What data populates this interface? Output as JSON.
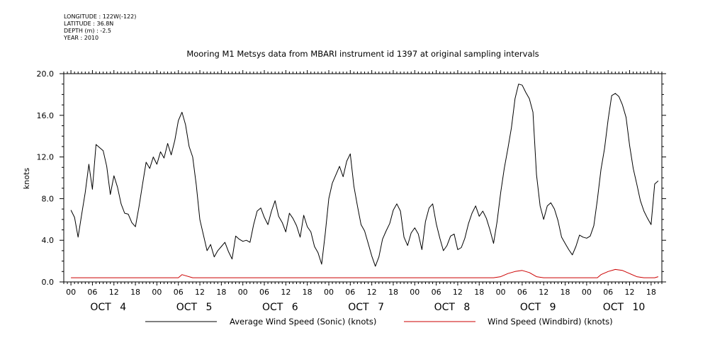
{
  "header": {
    "longitude": "LONGITUDE : 122W(-122)",
    "latitude": "LATITUDE : 36.8N",
    "depth": "DEPTH (m) : -2.5",
    "year": "YEAR : 2010"
  },
  "chart_data": {
    "type": "line",
    "title": "Mooring M1 Metsys data from MBARI instrument id 1397 at original sampling intervals",
    "ylabel": "knots",
    "xlabel": "",
    "ylim": [
      0,
      20
    ],
    "yticks": [
      "0.0",
      "4.0",
      "8.0",
      "12.0",
      "16.0",
      "20.0"
    ],
    "x_start_hour": -2,
    "x_end_hour": 165,
    "hour_tick_labels": [
      "00",
      "06",
      "12",
      "18",
      "00",
      "06",
      "12",
      "18",
      "00",
      "06",
      "12",
      "18",
      "00",
      "06",
      "12",
      "18",
      "00",
      "06",
      "12",
      "18",
      "00",
      "06",
      "12",
      "18",
      "00",
      "06",
      "12",
      "18"
    ],
    "day_labels": [
      "OCT 4",
      "OCT 5",
      "OCT 6",
      "OCT 7",
      "OCT 8",
      "OCT 9",
      "OCT 10"
    ],
    "grid": false,
    "legend_position": "bottom",
    "series": [
      {
        "name": "Average Wind Speed (Sonic) (knots)",
        "color": "#000000",
        "points": [
          [
            0,
            6.9
          ],
          [
            1,
            6.2
          ],
          [
            2,
            4.3
          ],
          [
            3,
            6.5
          ],
          [
            4,
            8.6
          ],
          [
            5,
            11.3
          ],
          [
            6,
            8.9
          ],
          [
            7,
            13.2
          ],
          [
            8,
            12.9
          ],
          [
            9,
            12.6
          ],
          [
            10,
            11.1
          ],
          [
            11,
            8.4
          ],
          [
            12,
            10.2
          ],
          [
            13,
            9.1
          ],
          [
            14,
            7.5
          ],
          [
            15,
            6.6
          ],
          [
            16,
            6.5
          ],
          [
            17,
            5.7
          ],
          [
            18,
            5.3
          ],
          [
            19,
            7.2
          ],
          [
            20,
            9.4
          ],
          [
            21,
            11.5
          ],
          [
            22,
            10.9
          ],
          [
            23,
            12.0
          ],
          [
            24,
            11.3
          ],
          [
            25,
            12.5
          ],
          [
            26,
            11.9
          ],
          [
            27,
            13.3
          ],
          [
            28,
            12.2
          ],
          [
            29,
            13.6
          ],
          [
            30,
            15.5
          ],
          [
            31,
            16.3
          ],
          [
            32,
            15.1
          ],
          [
            33,
            13.0
          ],
          [
            34,
            12.0
          ],
          [
            35,
            9.3
          ],
          [
            36,
            6.0
          ],
          [
            37,
            4.5
          ],
          [
            38,
            3.0
          ],
          [
            39,
            3.6
          ],
          [
            40,
            2.4
          ],
          [
            41,
            3.0
          ],
          [
            42,
            3.4
          ],
          [
            43,
            3.8
          ],
          [
            44,
            2.9
          ],
          [
            45,
            2.2
          ],
          [
            46,
            4.4
          ],
          [
            47,
            4.1
          ],
          [
            48,
            3.9
          ],
          [
            49,
            4.0
          ],
          [
            50,
            3.8
          ],
          [
            51,
            5.5
          ],
          [
            52,
            6.8
          ],
          [
            53,
            7.1
          ],
          [
            54,
            6.2
          ],
          [
            55,
            5.5
          ],
          [
            56,
            6.8
          ],
          [
            57,
            7.8
          ],
          [
            58,
            6.3
          ],
          [
            59,
            5.7
          ],
          [
            60,
            4.8
          ],
          [
            61,
            6.6
          ],
          [
            62,
            6.1
          ],
          [
            63,
            5.4
          ],
          [
            64,
            4.3
          ],
          [
            65,
            6.4
          ],
          [
            66,
            5.3
          ],
          [
            67,
            4.8
          ],
          [
            68,
            3.4
          ],
          [
            69,
            2.8
          ],
          [
            70,
            1.7
          ],
          [
            71,
            4.6
          ],
          [
            72,
            8.0
          ],
          [
            73,
            9.5
          ],
          [
            74,
            10.3
          ],
          [
            75,
            11.1
          ],
          [
            76,
            10.1
          ],
          [
            77,
            11.6
          ],
          [
            78,
            12.3
          ],
          [
            79,
            9.2
          ],
          [
            80,
            7.3
          ],
          [
            81,
            5.5
          ],
          [
            82,
            4.9
          ],
          [
            83,
            3.7
          ],
          [
            84,
            2.5
          ],
          [
            85,
            1.5
          ],
          [
            86,
            2.4
          ],
          [
            87,
            4.1
          ],
          [
            88,
            4.9
          ],
          [
            89,
            5.6
          ],
          [
            90,
            6.9
          ],
          [
            91,
            7.5
          ],
          [
            92,
            6.8
          ],
          [
            93,
            4.3
          ],
          [
            94,
            3.5
          ],
          [
            95,
            4.7
          ],
          [
            96,
            5.2
          ],
          [
            97,
            4.6
          ],
          [
            98,
            3.1
          ],
          [
            99,
            5.8
          ],
          [
            100,
            7.1
          ],
          [
            101,
            7.5
          ],
          [
            102,
            5.6
          ],
          [
            103,
            4.2
          ],
          [
            104,
            3.0
          ],
          [
            105,
            3.5
          ],
          [
            106,
            4.4
          ],
          [
            107,
            4.6
          ],
          [
            108,
            3.1
          ],
          [
            109,
            3.3
          ],
          [
            110,
            4.2
          ],
          [
            111,
            5.6
          ],
          [
            112,
            6.6
          ],
          [
            113,
            7.3
          ],
          [
            114,
            6.3
          ],
          [
            115,
            6.8
          ],
          [
            116,
            6.1
          ],
          [
            117,
            5.0
          ],
          [
            118,
            3.7
          ],
          [
            119,
            5.8
          ],
          [
            120,
            8.6
          ],
          [
            121,
            10.9
          ],
          [
            122,
            12.8
          ],
          [
            123,
            14.8
          ],
          [
            124,
            17.6
          ],
          [
            125,
            19.0
          ],
          [
            126,
            18.9
          ],
          [
            127,
            18.2
          ],
          [
            128,
            17.6
          ],
          [
            129,
            16.3
          ],
          [
            130,
            10.3
          ],
          [
            131,
            7.3
          ],
          [
            132,
            6.0
          ],
          [
            133,
            7.3
          ],
          [
            134,
            7.6
          ],
          [
            135,
            7.0
          ],
          [
            136,
            5.9
          ],
          [
            137,
            4.3
          ],
          [
            138,
            3.7
          ],
          [
            139,
            3.1
          ],
          [
            140,
            2.6
          ],
          [
            141,
            3.4
          ],
          [
            142,
            4.5
          ],
          [
            143,
            4.3
          ],
          [
            144,
            4.2
          ],
          [
            145,
            4.4
          ],
          [
            146,
            5.4
          ],
          [
            147,
            7.9
          ],
          [
            148,
            10.8
          ],
          [
            149,
            12.8
          ],
          [
            150,
            15.6
          ],
          [
            151,
            17.9
          ],
          [
            152,
            18.1
          ],
          [
            153,
            17.8
          ],
          [
            154,
            17.0
          ],
          [
            155,
            15.8
          ],
          [
            156,
            13.1
          ],
          [
            157,
            10.9
          ],
          [
            158,
            9.4
          ],
          [
            159,
            7.8
          ],
          [
            160,
            6.8
          ],
          [
            161,
            6.1
          ],
          [
            162,
            5.5
          ],
          [
            163,
            9.4
          ],
          [
            164,
            9.7
          ]
        ]
      },
      {
        "name": "Wind Speed (Windbird) (knots)",
        "color": "#cc0000",
        "points": [
          [
            0,
            0.4
          ],
          [
            10,
            0.4
          ],
          [
            20,
            0.4
          ],
          [
            30,
            0.4
          ],
          [
            31,
            0.7
          ],
          [
            32,
            0.6
          ],
          [
            34,
            0.4
          ],
          [
            60,
            0.4
          ],
          [
            90,
            0.4
          ],
          [
            115,
            0.4
          ],
          [
            118,
            0.4
          ],
          [
            120,
            0.5
          ],
          [
            122,
            0.8
          ],
          [
            124,
            1.0
          ],
          [
            126,
            1.1
          ],
          [
            128,
            0.9
          ],
          [
            130,
            0.5
          ],
          [
            132,
            0.4
          ],
          [
            140,
            0.4
          ],
          [
            145,
            0.4
          ],
          [
            147,
            0.4
          ],
          [
            148,
            0.7
          ],
          [
            150,
            1.0
          ],
          [
            152,
            1.2
          ],
          [
            154,
            1.1
          ],
          [
            156,
            0.8
          ],
          [
            158,
            0.5
          ],
          [
            160,
            0.4
          ],
          [
            163,
            0.4
          ],
          [
            164,
            0.5
          ]
        ]
      }
    ]
  }
}
